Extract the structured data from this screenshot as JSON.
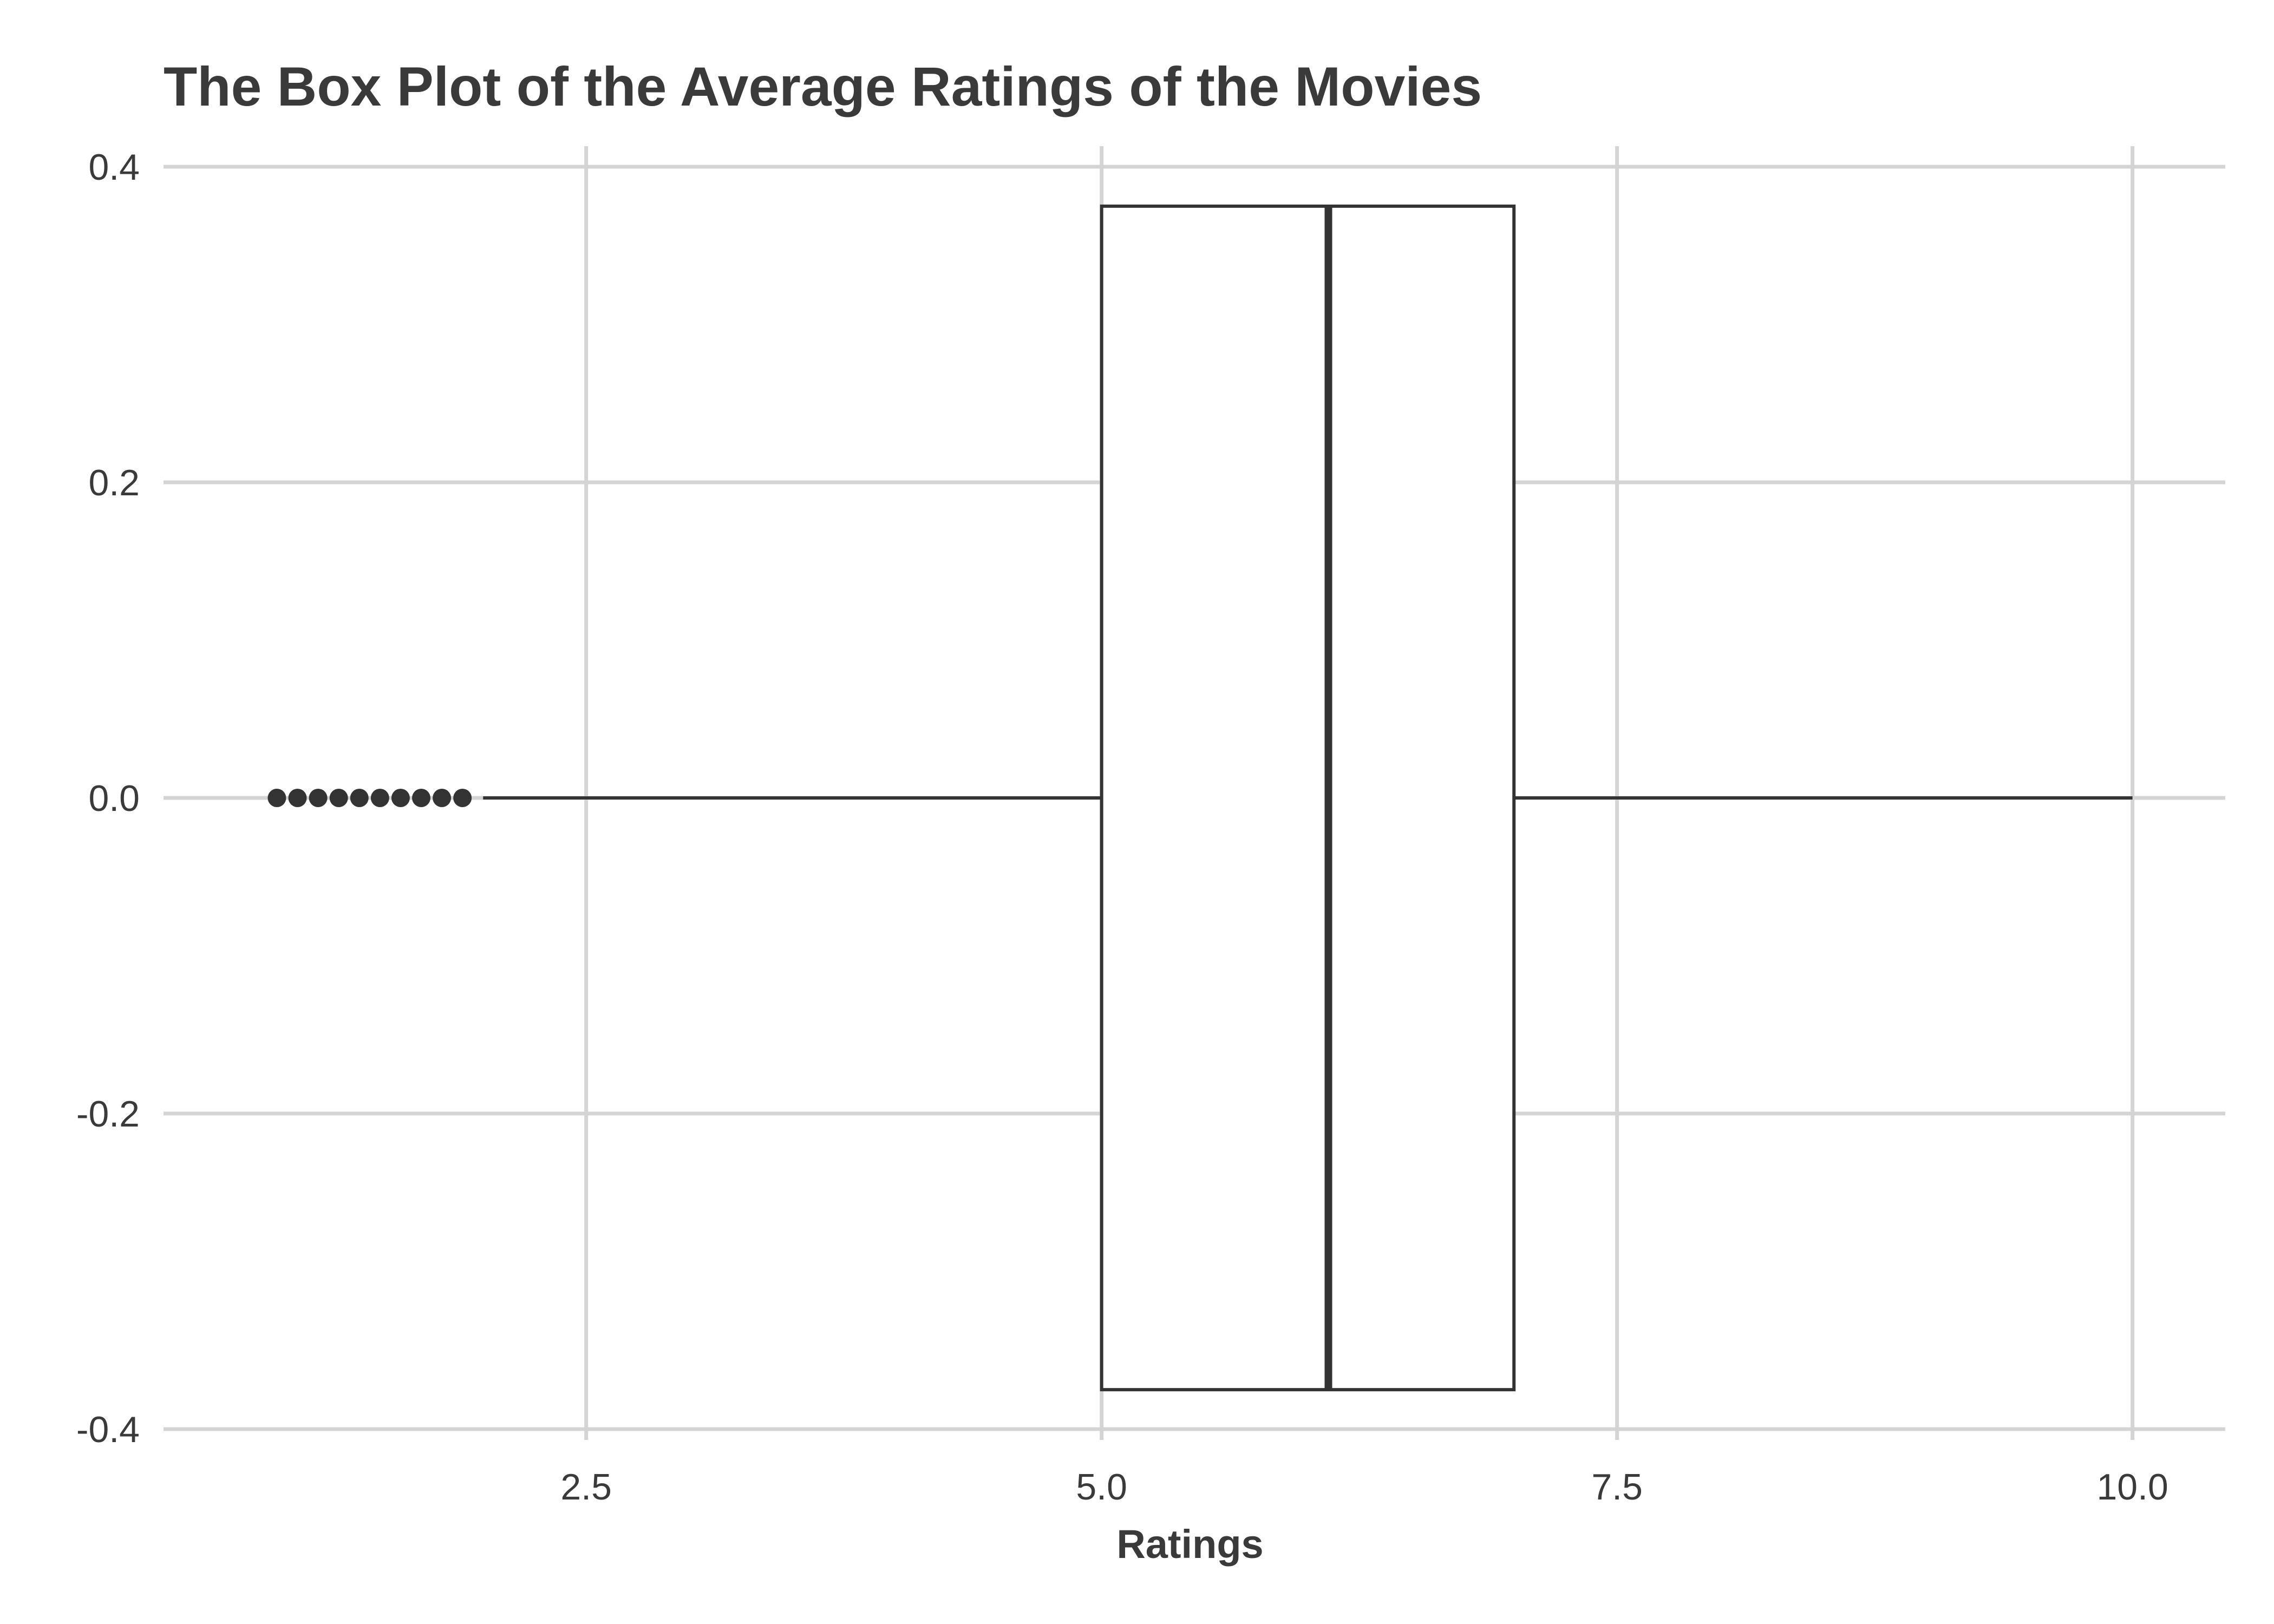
{
  "chart_data": {
    "type": "box",
    "title": "The Box Plot of the Average Ratings of the Movies",
    "xlabel": "Ratings",
    "ylabel": "",
    "xlim": [
      0.45,
      10.45
    ],
    "ylim": [
      -0.4,
      0.4
    ],
    "x_ticks": [
      "2.5",
      "5.0",
      "7.5",
      "10.0"
    ],
    "x_tick_values": [
      2.5,
      5.0,
      7.5,
      10.0
    ],
    "y_ticks": [
      "0.4",
      "0.2",
      "0.0",
      "-0.2",
      "-0.4"
    ],
    "y_tick_values": [
      0.4,
      0.2,
      0.0,
      -0.2,
      -0.4
    ],
    "grid": true,
    "box": {
      "lower_whisker": 2.0,
      "q1": 5.0,
      "median": 6.1,
      "q3": 7.0,
      "upper_whisker": 10.0,
      "y_center": 0.0,
      "half_height": 0.375
    },
    "outliers": [
      1.0,
      1.1,
      1.2,
      1.3,
      1.4,
      1.5,
      1.6,
      1.7,
      1.8,
      1.9
    ],
    "colors": {
      "box_line": "#333333",
      "box_fill": "#ffffff",
      "grid": "#d4d4d4",
      "text": "#3a3a3a",
      "background": "#ffffff"
    }
  }
}
